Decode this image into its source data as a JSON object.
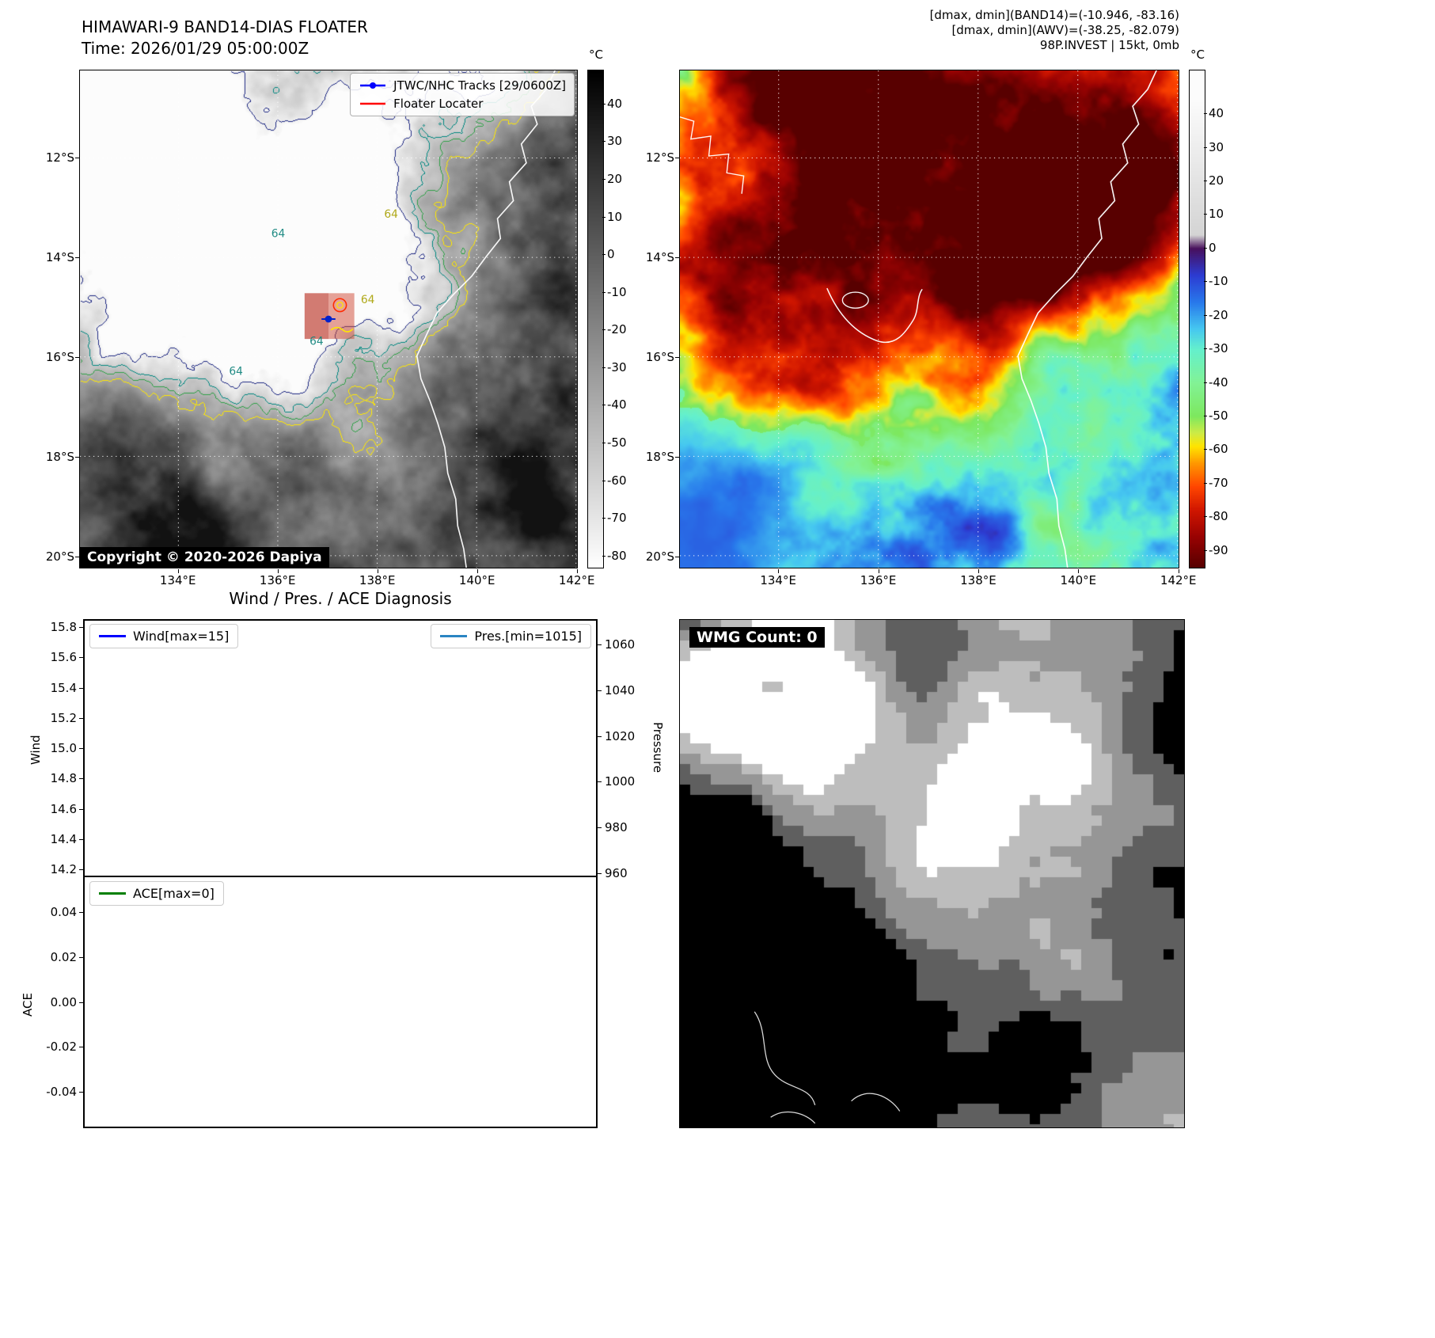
{
  "band14": {
    "title": "HIMAWARI-9 BAND14-DIAS FLOATER",
    "time": "Time: 2026/01/29 05:00:00Z",
    "copyright": "Copyright © 2020-2026 Dapiya",
    "contour_label": "64",
    "legend": [
      {
        "label": "JTWC/NHC Tracks [29/0600Z]",
        "color": "#0000ff",
        "marker": "line-dot"
      },
      {
        "label": "Floater Locater",
        "color": "#ff0000",
        "marker": "line"
      }
    ],
    "colorbar": {
      "unit": "°C",
      "ticks": [
        40,
        30,
        20,
        10,
        0,
        -10,
        -20,
        -30,
        -40,
        -50,
        -60,
        -70,
        -80
      ]
    },
    "xticks": [
      "134°E",
      "136°E",
      "138°E",
      "140°E",
      "142°E"
    ],
    "yticks": [
      "12°S",
      "14°S",
      "16°S",
      "18°S",
      "20°S"
    ]
  },
  "awv": {
    "header": [
      "[dmax, dmin](BAND14)=(-10.946, -83.16)",
      "[dmax, dmin](AWV)=(-38.25, -82.079)",
      "98P.INVEST | 15kt, 0mb"
    ],
    "colorbar": {
      "unit": "°C",
      "ticks": [
        40,
        30,
        20,
        10,
        0,
        -10,
        -20,
        -30,
        -40,
        -50,
        -60,
        -70,
        -80,
        -90
      ]
    },
    "xticks": [
      "134°E",
      "136°E",
      "138°E",
      "140°E",
      "142°E"
    ],
    "yticks": [
      "12°S",
      "14°S",
      "16°S",
      "18°S",
      "20°S"
    ]
  },
  "diagnosis": {
    "title": "Wind / Pres. / ACE Diagnosis",
    "wind": {
      "legend": "Wind[max=15]",
      "color": "#0000ff",
      "axis_label": "Wind",
      "ticks": [
        "15.8",
        "15.6",
        "15.4",
        "15.2",
        "15.0",
        "14.8",
        "14.6",
        "14.4",
        "14.2"
      ]
    },
    "pressure": {
      "legend": "Pres.[min=1015]",
      "color": "#2a85c2",
      "axis_label": "Pressure",
      "ticks": [
        "1060",
        "1040",
        "1020",
        "1000",
        "980",
        "960"
      ]
    },
    "ace": {
      "legend": "ACE[max=0]",
      "color": "#007f00",
      "axis_label": "ACE",
      "ticks": [
        "0.04",
        "0.02",
        "0.00",
        "-0.02",
        "-0.04"
      ]
    }
  },
  "wmg": {
    "label": "WMG Count: 0"
  },
  "chart_data": [
    {
      "type": "line",
      "title": "Wind / Pres. / ACE Diagnosis",
      "panels": [
        {
          "name": "wind_pressure",
          "left_axis": {
            "label": "Wind",
            "ticks": [
              15.8,
              15.6,
              15.4,
              15.2,
              15.0,
              14.8,
              14.6,
              14.4,
              14.2
            ]
          },
          "right_axis": {
            "label": "Pressure",
            "ticks": [
              1060,
              1040,
              1020,
              1000,
              980,
              960
            ]
          },
          "series": [
            {
              "name": "Wind[max=15]",
              "color": "#0000ff",
              "x": [],
              "values": []
            },
            {
              "name": "Pres.[min=1015]",
              "color": "#2a85c2",
              "x": [],
              "values": []
            }
          ]
        },
        {
          "name": "ace",
          "left_axis": {
            "label": "ACE",
            "ticks": [
              0.04,
              0.02,
              0.0,
              -0.02,
              -0.04
            ]
          },
          "series": [
            {
              "name": "ACE[max=0]",
              "color": "#007f00",
              "x": [],
              "values": []
            }
          ]
        }
      ],
      "legend_position": "upper left / upper right",
      "grid": false
    },
    {
      "type": "heatmap",
      "title": "HIMAWARI-9 BAND14-DIAS FLOATER (grayscale IR with contours)",
      "colorbar_unit": "°C",
      "colorbar_ticks": [
        40,
        30,
        20,
        10,
        0,
        -10,
        -20,
        -30,
        -40,
        -50,
        -60,
        -70,
        -80
      ],
      "x_ticks": [
        "134°E",
        "136°E",
        "138°E",
        "140°E",
        "142°E"
      ],
      "y_ticks": [
        "12°S",
        "14°S",
        "16°S",
        "18°S",
        "20°S"
      ]
    },
    {
      "type": "heatmap",
      "title": "AWV enhanced color IR",
      "colorbar_unit": "°C",
      "colorbar_ticks": [
        40,
        30,
        20,
        10,
        0,
        -10,
        -20,
        -30,
        -40,
        -50,
        -60,
        -70,
        -80,
        -90
      ],
      "x_ticks": [
        "134°E",
        "136°E",
        "138°E",
        "140°E",
        "142°E"
      ],
      "y_ticks": [
        "12°S",
        "14°S",
        "16°S",
        "18°S",
        "20°S"
      ]
    },
    {
      "type": "heatmap",
      "title": "WMG classification grid",
      "annotation": "WMG Count: 0"
    }
  ]
}
